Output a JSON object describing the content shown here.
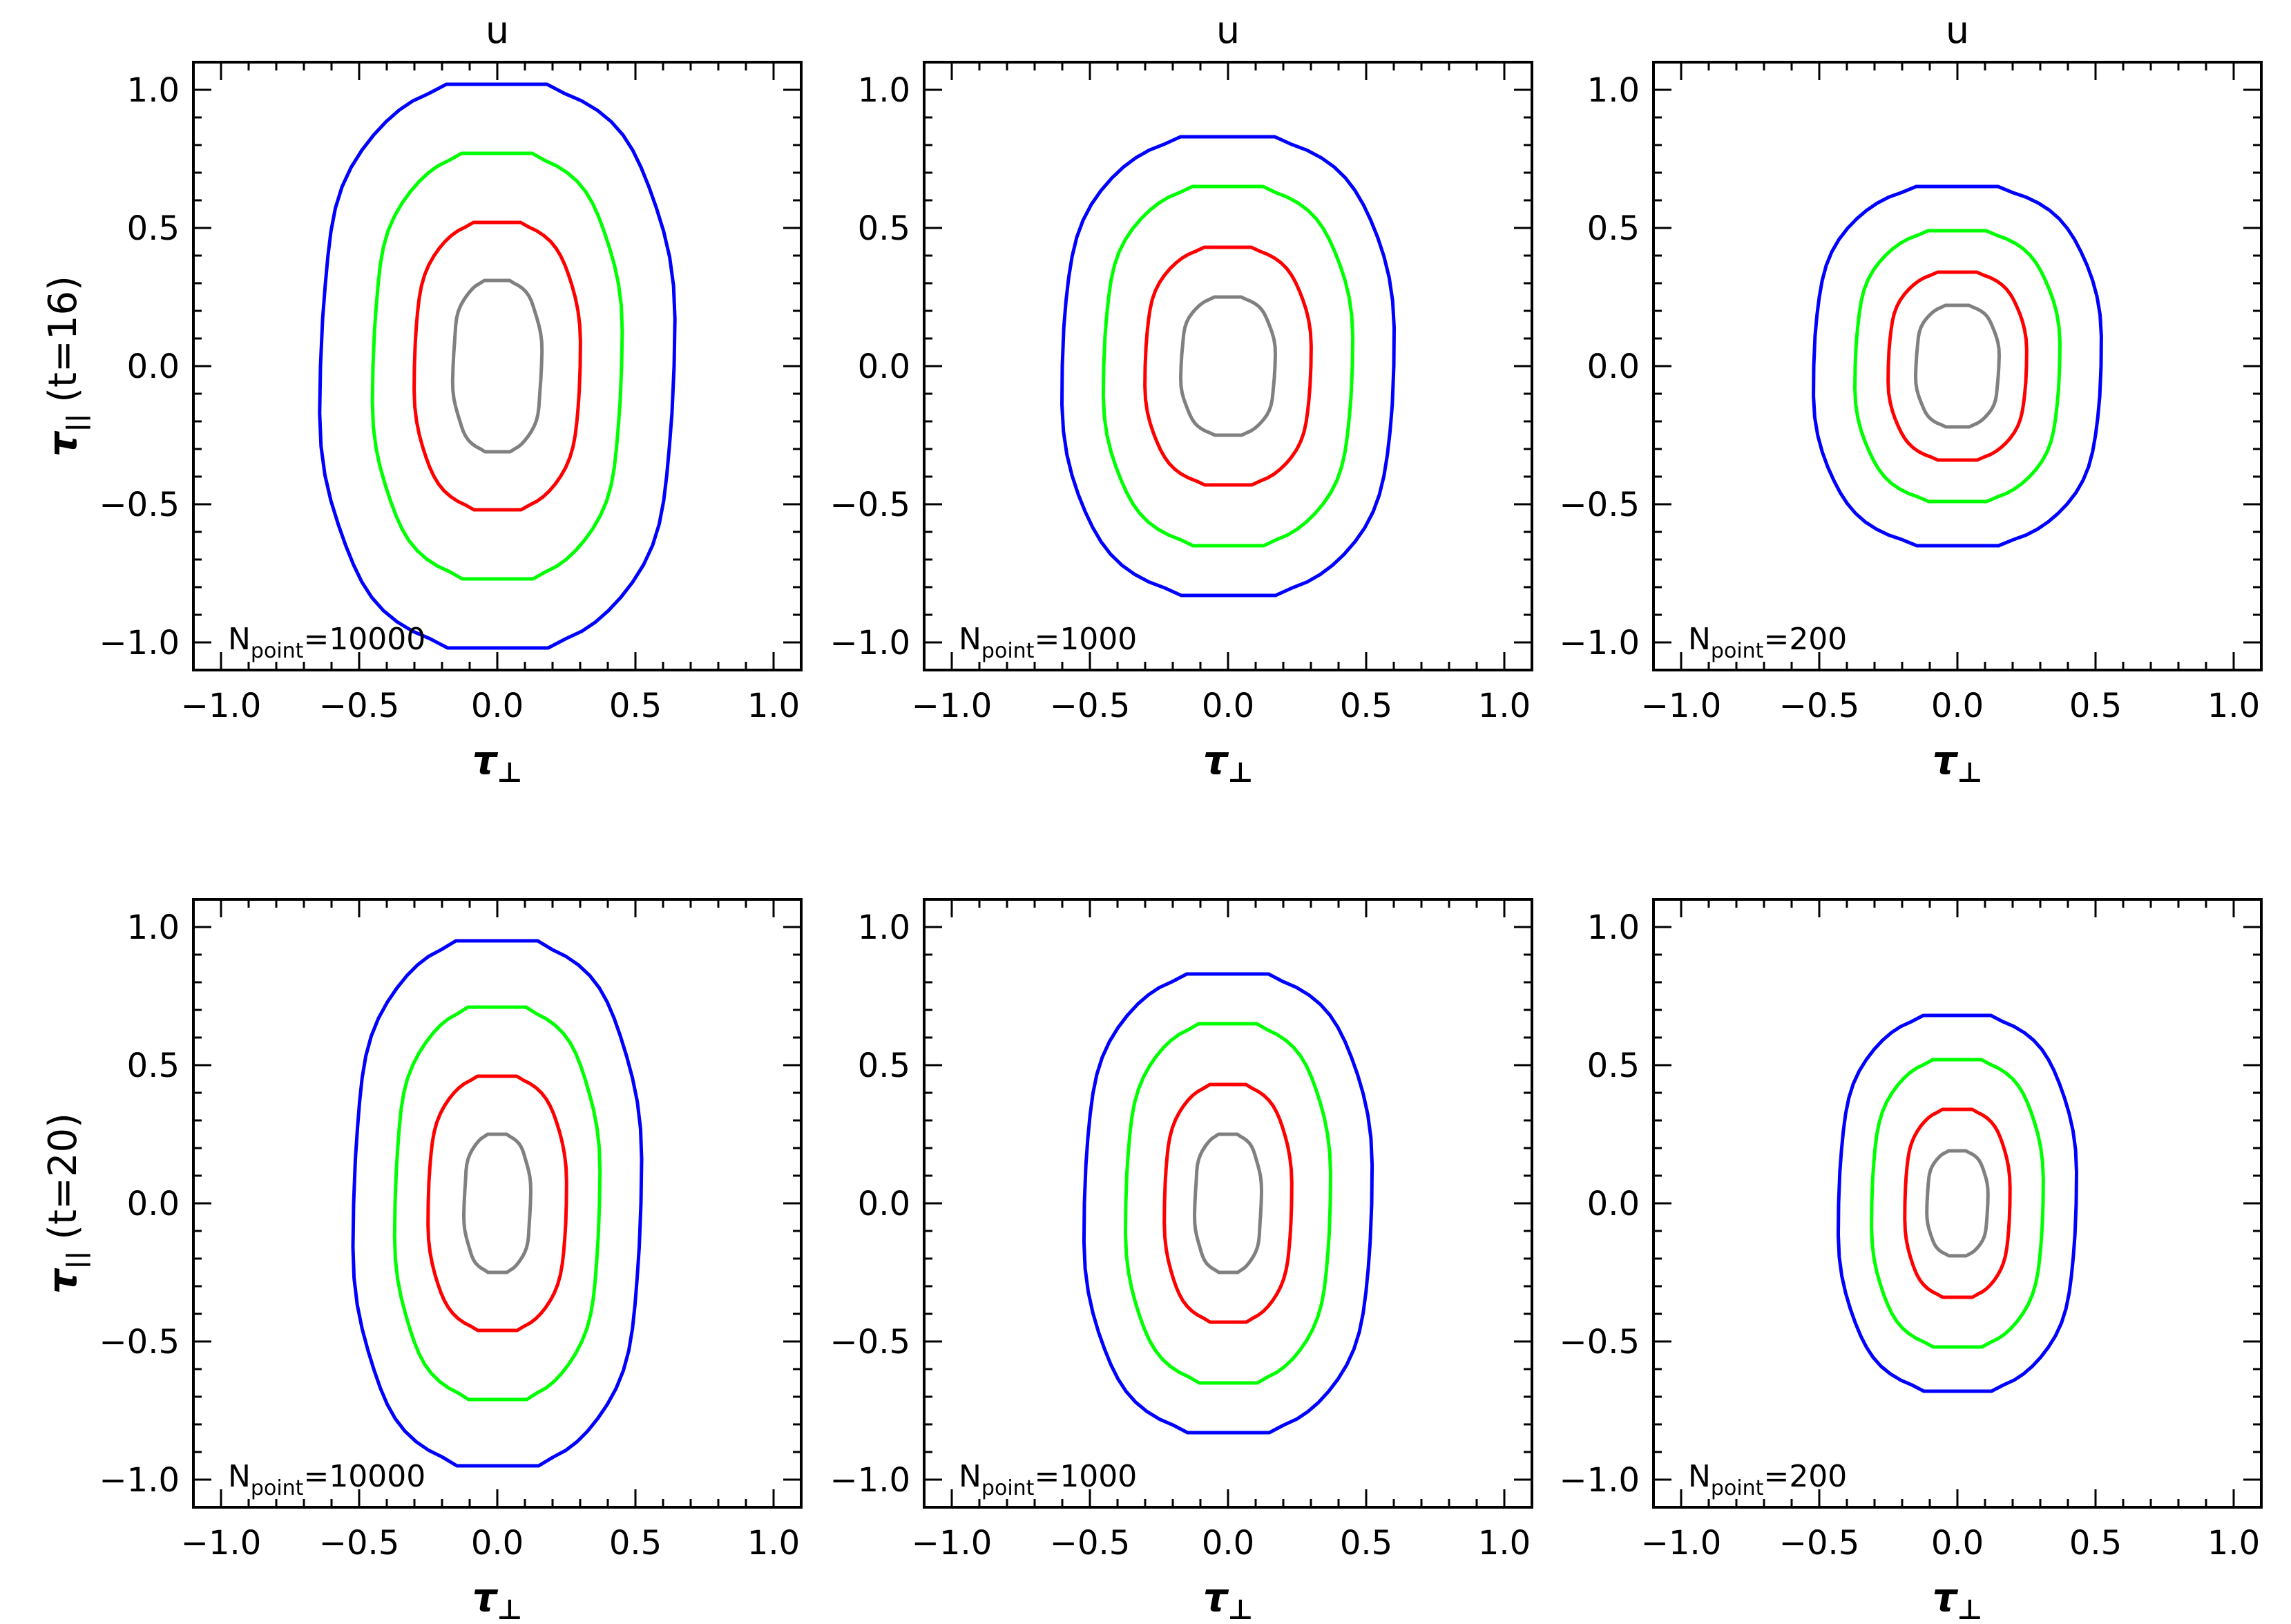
{
  "figure": {
    "row_labels": [
      {
        "symbol": "τ",
        "subscript": "||",
        "suffix": "(t=16)"
      },
      {
        "symbol": "τ",
        "subscript": "||",
        "suffix": "(t=20)"
      }
    ],
    "x_label": {
      "symbol": "τ",
      "subscript": "⊥"
    },
    "panel_title": "u",
    "npoint_prefix": "N",
    "npoint_sub": "point",
    "contour_colors": [
      "#0000ff",
      "#00ff00",
      "#ff0000",
      "#808080"
    ],
    "contour_color_names": [
      "blue",
      "green",
      "red",
      "gray"
    ]
  },
  "chart_data": [
    {
      "type": "contour",
      "row": 0,
      "col": 0,
      "title": "u",
      "npoint": "10000",
      "xlim": [
        -1.1,
        1.1
      ],
      "ylim": [
        -1.1,
        1.1
      ],
      "xticks": [
        "−1.0",
        "−0.5",
        "0.0",
        "0.5",
        "1.0"
      ],
      "yticks": [
        "1.0",
        "0.5",
        "0.0",
        "−0.5",
        "−1.0"
      ],
      "contours": [
        {
          "color": "blue",
          "hw": 0.64,
          "hh": 1.02,
          "flat": 0.22,
          "shoulder": 0.5,
          "k": 0.15
        },
        {
          "color": "green",
          "hw": 0.45,
          "hh": 0.77,
          "flat": 0.18,
          "shoulder": 0.55,
          "k": 0.15
        },
        {
          "color": "red",
          "hw": 0.3,
          "hh": 0.52,
          "flat": 0.1,
          "shoulder": 0.6,
          "k": 0.12
        },
        {
          "color": "gray",
          "hw": 0.16,
          "hh": 0.31,
          "flat": 0.07,
          "shoulder": 0.55,
          "k": 0.25
        }
      ]
    },
    {
      "type": "contour",
      "row": 0,
      "col": 1,
      "title": "u",
      "npoint": "1000",
      "xlim": [
        -1.1,
        1.1
      ],
      "ylim": [
        -1.1,
        1.1
      ],
      "xticks": [
        "−1.0",
        "−0.5",
        "0.0",
        "0.5",
        "1.0"
      ],
      "yticks": [
        "1.0",
        "0.5",
        "0.0",
        "−0.5",
        "−1.0"
      ],
      "contours": [
        {
          "color": "blue",
          "hw": 0.6,
          "hh": 0.83,
          "flat": 0.2,
          "shoulder": 0.6,
          "k": 0.1
        },
        {
          "color": "green",
          "hw": 0.45,
          "hh": 0.65,
          "flat": 0.17,
          "shoulder": 0.6,
          "k": 0.12
        },
        {
          "color": "red",
          "hw": 0.3,
          "hh": 0.43,
          "flat": 0.1,
          "shoulder": 0.6,
          "k": 0.12
        },
        {
          "color": "gray",
          "hw": 0.17,
          "hh": 0.25,
          "flat": 0.05,
          "shoulder": 0.55,
          "k": 0.2
        }
      ]
    },
    {
      "type": "contour",
      "row": 0,
      "col": 2,
      "title": "u",
      "npoint": "200",
      "xlim": [
        -1.1,
        1.1
      ],
      "ylim": [
        -1.1,
        1.1
      ],
      "xticks": [
        "−1.0",
        "−0.5",
        "0.0",
        "0.5",
        "1.0"
      ],
      "yticks": [
        "1.0",
        "0.5",
        "0.0",
        "−0.5",
        "−1.0"
      ],
      "contours": [
        {
          "color": "blue",
          "hw": 0.52,
          "hh": 0.65,
          "flat": 0.15,
          "shoulder": 0.6,
          "k": 0.1
        },
        {
          "color": "green",
          "hw": 0.37,
          "hh": 0.49,
          "flat": 0.12,
          "shoulder": 0.6,
          "k": 0.12
        },
        {
          "color": "red",
          "hw": 0.25,
          "hh": 0.34,
          "flat": 0.08,
          "shoulder": 0.6,
          "k": 0.12
        },
        {
          "color": "gray",
          "hw": 0.15,
          "hh": 0.22,
          "flat": 0.04,
          "shoulder": 0.55,
          "k": 0.2
        }
      ]
    },
    {
      "type": "contour",
      "row": 1,
      "col": 0,
      "title": "",
      "npoint": "10000",
      "xlim": [
        -1.1,
        1.1
      ],
      "ylim": [
        -1.1,
        1.1
      ],
      "xticks": [
        "−1.0",
        "−0.5",
        "0.0",
        "0.5",
        "1.0"
      ],
      "yticks": [
        "1.0",
        "0.5",
        "0.0",
        "−0.5",
        "−1.0"
      ],
      "contours": [
        {
          "color": "blue",
          "hw": 0.52,
          "hh": 0.95,
          "flat": 0.2,
          "shoulder": 0.55,
          "k": 0.15
        },
        {
          "color": "green",
          "hw": 0.37,
          "hh": 0.71,
          "flat": 0.16,
          "shoulder": 0.6,
          "k": 0.15
        },
        {
          "color": "red",
          "hw": 0.25,
          "hh": 0.46,
          "flat": 0.08,
          "shoulder": 0.6,
          "k": 0.12
        },
        {
          "color": "gray",
          "hw": 0.12,
          "hh": 0.25,
          "flat": 0.04,
          "shoulder": 0.55,
          "k": 0.25
        }
      ]
    },
    {
      "type": "contour",
      "row": 1,
      "col": 1,
      "title": "",
      "npoint": "1000",
      "xlim": [
        -1.1,
        1.1
      ],
      "ylim": [
        -1.1,
        1.1
      ],
      "xticks": [
        "−1.0",
        "−0.5",
        "0.0",
        "0.5",
        "1.0"
      ],
      "yticks": [
        "1.0",
        "0.5",
        "0.0",
        "−0.5",
        "−1.0"
      ],
      "contours": [
        {
          "color": "blue",
          "hw": 0.52,
          "hh": 0.83,
          "flat": 0.2,
          "shoulder": 0.6,
          "k": 0.12
        },
        {
          "color": "green",
          "hw": 0.37,
          "hh": 0.65,
          "flat": 0.15,
          "shoulder": 0.6,
          "k": 0.12
        },
        {
          "color": "red",
          "hw": 0.23,
          "hh": 0.43,
          "flat": 0.1,
          "shoulder": 0.6,
          "k": 0.12
        },
        {
          "color": "gray",
          "hw": 0.12,
          "hh": 0.25,
          "flat": 0.04,
          "shoulder": 0.55,
          "k": 0.25
        }
      ]
    },
    {
      "type": "contour",
      "row": 1,
      "col": 2,
      "title": "",
      "npoint": "200",
      "xlim": [
        -1.1,
        1.1
      ],
      "ylim": [
        -1.1,
        1.1
      ],
      "xticks": [
        "−1.0",
        "−0.5",
        "0.0",
        "0.5",
        "1.0"
      ],
      "yticks": [
        "1.0",
        "0.5",
        "0.0",
        "−0.5",
        "−1.0"
      ],
      "contours": [
        {
          "color": "blue",
          "hw": 0.43,
          "hh": 0.68,
          "flat": 0.15,
          "shoulder": 0.6,
          "k": 0.12
        },
        {
          "color": "green",
          "hw": 0.31,
          "hh": 0.52,
          "flat": 0.12,
          "shoulder": 0.6,
          "k": 0.12
        },
        {
          "color": "red",
          "hw": 0.19,
          "hh": 0.34,
          "flat": 0.07,
          "shoulder": 0.6,
          "k": 0.12
        },
        {
          "color": "gray",
          "hw": 0.11,
          "hh": 0.19,
          "flat": 0.03,
          "shoulder": 0.55,
          "k": 0.2
        }
      ]
    }
  ]
}
